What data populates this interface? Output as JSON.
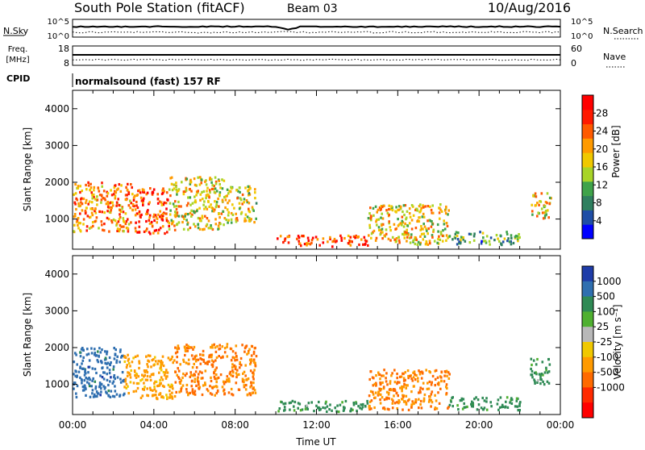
{
  "header": {
    "title": "South Pole Station (fitACF)",
    "beam": "Beam 03",
    "date": "10/Aug/2016"
  },
  "noise_panel": {
    "left_label": "N.Sky",
    "right_label": "N.Search",
    "left_ticks": [
      "10^5",
      "10^0"
    ],
    "right_ticks": [
      "10^5",
      "10^0"
    ]
  },
  "freq_panel": {
    "left_label_top": "Freq.",
    "left_label_bottom": "[MHz]",
    "right_label": "Nave",
    "left_ticks": [
      "18",
      "8"
    ],
    "right_ticks": [
      "60",
      "0"
    ]
  },
  "cpid": {
    "label": "CPID",
    "value": "normalsound (fast) 157 RF"
  },
  "colors": {
    "power_scale": [
      "#0000ff",
      "#1f4ea6",
      "#2f7f5f",
      "#3fa34a",
      "#a8d428",
      "#f0c800",
      "#ff9a00",
      "#ff5a00",
      "#ff1a00",
      "#ff0000"
    ],
    "velocity_scale": [
      "#1e3ca8",
      "#2f6fb0",
      "#2f8a55",
      "#4fb030",
      "#b8b8b8",
      "#f0c800",
      "#ff9a00",
      "#ff6a00",
      "#ff2a00",
      "#ff0000"
    ]
  },
  "chart_data": [
    {
      "type": "heatmap",
      "name": "power",
      "ylabel": "Slant Range [km]",
      "xlim": [
        "00:00",
        "24:00"
      ],
      "ylim": [
        180,
        4500
      ],
      "y_ticks": [
        "1000",
        "2000",
        "3000",
        "4000"
      ],
      "colorbar_label": "Power [dB]",
      "colorbar_ticks": [
        "4",
        "8",
        "12",
        "16",
        "20",
        "24",
        "28"
      ],
      "colorbar_range": [
        0,
        32
      ],
      "regions": [
        {
          "t0": 0.0,
          "t1": 2.9,
          "r0": 650,
          "r1": 2000,
          "value": 22
        },
        {
          "t0": 2.9,
          "t1": 4.7,
          "r0": 600,
          "r1": 1850,
          "value": 26
        },
        {
          "t0": 4.7,
          "t1": 7.5,
          "r0": 700,
          "r1": 2150,
          "value": 18
        },
        {
          "t0": 7.5,
          "t1": 9.0,
          "r0": 900,
          "r1": 1900,
          "value": 16
        },
        {
          "t0": 10.0,
          "t1": 14.5,
          "r0": 250,
          "r1": 550,
          "value": 26
        },
        {
          "t0": 14.5,
          "t1": 18.5,
          "r0": 300,
          "r1": 1400,
          "value": 18
        },
        {
          "t0": 18.5,
          "t1": 22.0,
          "r0": 300,
          "r1": 650,
          "value": 10
        },
        {
          "t0": 22.5,
          "t1": 23.5,
          "r0": 1000,
          "r1": 1700,
          "value": 18
        }
      ]
    },
    {
      "type": "heatmap",
      "name": "velocity",
      "xlabel": "Time UT",
      "ylabel": "Slant Range [km]",
      "xlim": [
        "00:00",
        "24:00"
      ],
      "ylim": [
        180,
        4500
      ],
      "x_ticks": [
        "00:00",
        "04:00",
        "08:00",
        "12:00",
        "16:00",
        "20:00",
        "00:00"
      ],
      "y_ticks": [
        "1000",
        "2000",
        "3000",
        "4000"
      ],
      "colorbar_label": "Velocity [m s⁻¹]",
      "colorbar_ticks": [
        "1000",
        "500",
        "100",
        "25",
        "-25",
        "-100",
        "-500",
        "-1000"
      ],
      "regions": [
        {
          "t0": 0.0,
          "t1": 2.5,
          "r0": 650,
          "r1": 2000,
          "value": 500
        },
        {
          "t0": 2.5,
          "t1": 5.0,
          "r0": 600,
          "r1": 1800,
          "value": -100
        },
        {
          "t0": 5.0,
          "t1": 9.0,
          "r0": 700,
          "r1": 2100,
          "value": -300
        },
        {
          "t0": 10.0,
          "t1": 14.5,
          "r0": 250,
          "r1": 550,
          "value": 100
        },
        {
          "t0": 14.5,
          "t1": 18.5,
          "r0": 300,
          "r1": 1400,
          "value": -300
        },
        {
          "t0": 18.5,
          "t1": 22.0,
          "r0": 300,
          "r1": 650,
          "value": 100
        },
        {
          "t0": 22.5,
          "t1": 23.5,
          "r0": 1000,
          "r1": 1700,
          "value": 100
        }
      ]
    }
  ]
}
